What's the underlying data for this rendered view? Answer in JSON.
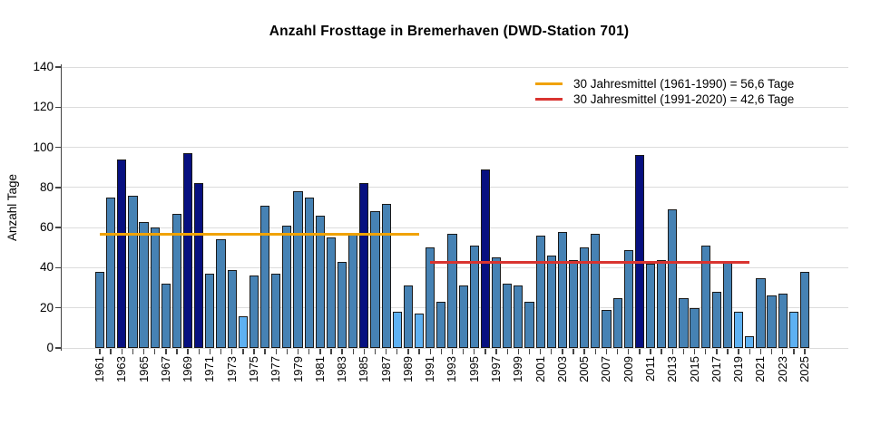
{
  "chart_data": {
    "type": "bar",
    "title": "Anzahl Frosttage in Bremerhaven (DWD-Station 701)",
    "xlabel": "",
    "ylabel": "Anzahl Tage",
    "ylim": [
      0,
      140
    ],
    "ytick_step": 20,
    "grid": true,
    "legend_position": "top-right-inside",
    "xtick_label_every": 2,
    "categories": [
      1961,
      1962,
      1963,
      1964,
      1965,
      1966,
      1967,
      1968,
      1969,
      1970,
      1971,
      1972,
      1973,
      1974,
      1975,
      1976,
      1977,
      1978,
      1979,
      1980,
      1981,
      1982,
      1983,
      1984,
      1985,
      1986,
      1987,
      1988,
      1989,
      1990,
      1991,
      1992,
      1993,
      1994,
      1995,
      1996,
      1997,
      1998,
      1999,
      2000,
      2001,
      2002,
      2003,
      2004,
      2005,
      2006,
      2007,
      2008,
      2009,
      2010,
      2011,
      2012,
      2013,
      2014,
      2015,
      2016,
      2017,
      2018,
      2019,
      2020,
      2021,
      2022,
      2023,
      2024,
      2025
    ],
    "values": [
      38,
      75,
      94,
      76,
      63,
      60,
      32,
      67,
      97,
      82,
      37,
      54,
      39,
      16,
      36,
      71,
      37,
      61,
      78,
      75,
      66,
      55,
      43,
      57,
      82,
      68,
      72,
      18,
      31,
      17,
      50,
      23,
      57,
      31,
      51,
      89,
      45,
      32,
      31,
      23,
      56,
      46,
      58,
      44,
      50,
      57,
      19,
      25,
      49,
      96,
      42,
      44,
      69,
      25,
      20,
      51,
      28,
      43,
      18,
      6,
      35,
      26,
      27,
      18,
      38
    ],
    "colors": {
      "bar_default": "#4682B4",
      "bar_high": "#071080",
      "bar_low": "#5EB1F2",
      "high_threshold": 82,
      "low_threshold": 18,
      "grid": "#dcdcdc",
      "axis": "#444444",
      "bar_border": "#1a1a1a"
    },
    "mean_lines": [
      {
        "label": "30 Jahresmittel (1961-1990) = 56,6 Tage",
        "value": 56.6,
        "from": 1961,
        "to": 1990,
        "color": "#F0A202"
      },
      {
        "label": "30 Jahresmittel (1991-2020) = 42,6 Tage",
        "value": 42.6,
        "from": 1991,
        "to": 2020,
        "color": "#D93430"
      }
    ]
  }
}
